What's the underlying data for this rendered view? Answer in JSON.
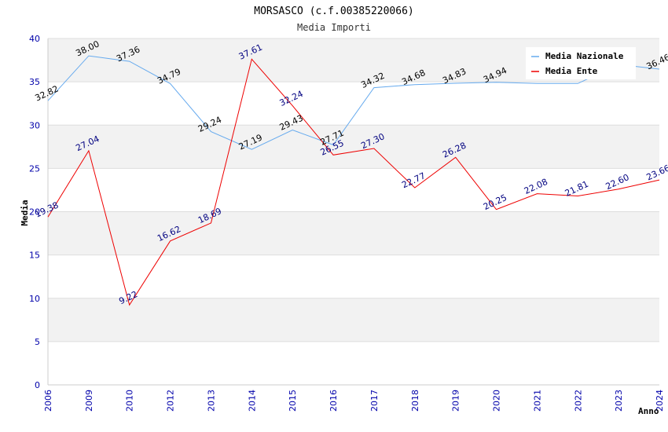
{
  "chart_data": {
    "type": "line",
    "title": "MORSASCO (c.f.00385220066)",
    "subtitle": "Media Importi",
    "xlabel": "Anno",
    "ylabel": "Media",
    "ylim": [
      0,
      40
    ],
    "yticks": [
      "0",
      "5",
      "10",
      "15",
      "20",
      "25",
      "30",
      "35",
      "40"
    ],
    "categories": [
      "2006",
      "2009",
      "2010",
      "2012",
      "2013",
      "2014",
      "2015",
      "2016",
      "2017",
      "2018",
      "2019",
      "2020",
      "2021",
      "2022",
      "2023",
      "2024"
    ],
    "series": [
      {
        "name": "Media Nazionale",
        "color": "#66aaee",
        "values": [
          32.82,
          38.0,
          37.36,
          34.79,
          29.24,
          27.19,
          29.43,
          27.71,
          34.32,
          34.68,
          34.83,
          34.94,
          34.8,
          34.8,
          37.0,
          36.46
        ],
        "labels": [
          "32.82",
          "38.00",
          "37.36",
          "34.79",
          "29.24",
          "27.19",
          "29.43",
          "27.71",
          "34.32",
          "34.68",
          "34.83",
          "34.94",
          "",
          "",
          "",
          "36.46"
        ]
      },
      {
        "name": "Media Ente",
        "color": "#ee0000",
        "values": [
          19.38,
          27.04,
          9.22,
          16.62,
          18.69,
          37.61,
          32.24,
          26.55,
          27.3,
          22.77,
          26.28,
          20.25,
          22.08,
          21.81,
          22.6,
          23.66
        ],
        "labels": [
          "19.38",
          "27.04",
          "9.22",
          "16.62",
          "18.69",
          "37.61",
          "32.24",
          "26.55",
          "27.30",
          "22.77",
          "26.28",
          "20.25",
          "22.08",
          "21.81",
          "22.60",
          "23.66"
        ]
      }
    ],
    "legend_position": "top-right",
    "grid": true
  }
}
